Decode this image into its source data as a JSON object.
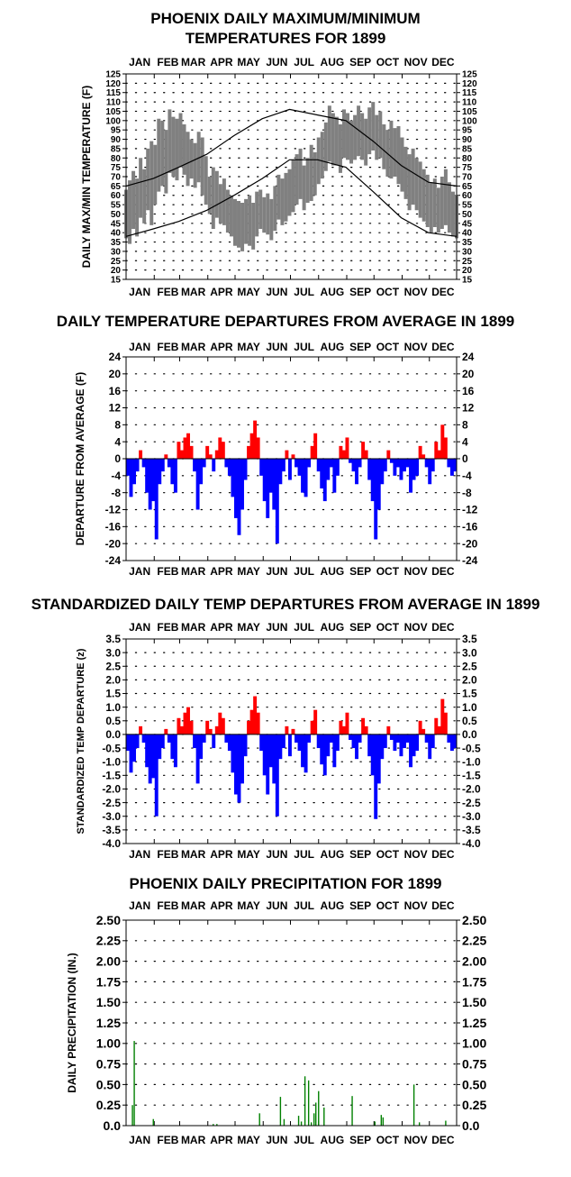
{
  "chart_data": [
    {
      "type": "line",
      "title_lines": [
        "PHOENIX DAILY MAXIMUM/MINIMUM",
        "TEMPERATURES FOR 1899"
      ],
      "ylabel": "DAILY MAX/MIN TEMPERATURE (F)",
      "months": [
        "JAN",
        "FEB",
        "MAR",
        "APR",
        "MAY",
        "JUN",
        "JUL",
        "AUG",
        "SEP",
        "OCT",
        "NOV",
        "DEC"
      ],
      "ylim": [
        15,
        125
      ],
      "ytick_labels": [
        "15",
        "20",
        "25",
        "30",
        "35",
        "40",
        "45",
        "50",
        "55",
        "60",
        "65",
        "70",
        "75",
        "80",
        "85",
        "90",
        "95",
        "100",
        "105",
        "110",
        "115",
        "120",
        "125"
      ],
      "grid": "dotted",
      "colors": {
        "daily_range": "#808080",
        "normals": "#000000"
      },
      "series": [
        {
          "label_key": "daily_max",
          "values": [
            63,
            68,
            73,
            69,
            80,
            74,
            85,
            89,
            87,
            101,
            100,
            95,
            106,
            102,
            101,
            104,
            98,
            94,
            90,
            88,
            94,
            91,
            81,
            70,
            75,
            73,
            66,
            69,
            63,
            60,
            58,
            57,
            56,
            58,
            60,
            56,
            62,
            63,
            59,
            61,
            58,
            65,
            71,
            69,
            72,
            74,
            79,
            82,
            85,
            76,
            80,
            87,
            83,
            91,
            94,
            99,
            108,
            104,
            102,
            98,
            106,
            104,
            100,
            103,
            108,
            104,
            101,
            107,
            110,
            103,
            105,
            98,
            95,
            100,
            96,
            97,
            91,
            86,
            82,
            85,
            80,
            78,
            74,
            71,
            67,
            69,
            64,
            70,
            74,
            67,
            62,
            60
          ]
        },
        {
          "label_key": "daily_min",
          "values": [
            37,
            34,
            42,
            38,
            48,
            45,
            52,
            44,
            55,
            62,
            65,
            61,
            72,
            70,
            68,
            75,
            71,
            65,
            69,
            64,
            67,
            60,
            55,
            50,
            42,
            48,
            45,
            44,
            40,
            38,
            33,
            32,
            30,
            34,
            33,
            31,
            38,
            42,
            40,
            39,
            36,
            41,
            47,
            44,
            46,
            49,
            51,
            55,
            58,
            52,
            56,
            57,
            60,
            66,
            69,
            73,
            78,
            76,
            76,
            72,
            80,
            79,
            77,
            79,
            81,
            79,
            76,
            82,
            84,
            79,
            80,
            74,
            70,
            69,
            70,
            66,
            62,
            58,
            52,
            55,
            52,
            48,
            46,
            43,
            40,
            43,
            40,
            42,
            44,
            40,
            38,
            37
          ]
        },
        {
          "label_key": "normal_max",
          "x_day": [
            1,
            31,
            59,
            90,
            120,
            151,
            181,
            212,
            243,
            273,
            304,
            334,
            365
          ],
          "values": [
            65,
            69,
            75,
            82,
            92,
            101,
            106,
            103,
            100,
            89,
            76,
            67,
            65
          ]
        },
        {
          "label_key": "normal_min",
          "x_day": [
            1,
            31,
            59,
            90,
            120,
            151,
            181,
            212,
            243,
            273,
            304,
            334,
            365
          ],
          "values": [
            38,
            42,
            46,
            52,
            60,
            69,
            79,
            79,
            75,
            62,
            48,
            40,
            38
          ]
        }
      ]
    },
    {
      "type": "bar",
      "title": "DAILY TEMPERATURE DEPARTURES FROM AVERAGE IN 1899",
      "ylabel": "DEPARTURE FROM AVERAGE (F)",
      "months": [
        "JAN",
        "FEB",
        "MAR",
        "APR",
        "MAY",
        "JUN",
        "JUL",
        "AUG",
        "SEP",
        "OCT",
        "NOV",
        "DEC"
      ],
      "ylim": [
        -24,
        24
      ],
      "ytick_labels": [
        "24",
        "20",
        "16",
        "12",
        "8",
        "4",
        "0",
        "-4",
        "-8",
        "-12",
        "-16",
        "-20",
        "-24"
      ],
      "colors": {
        "positive": "#ff0000",
        "negative": "#0000ff"
      },
      "values": [
        -4,
        -9,
        -6,
        -3,
        2,
        -2,
        -8,
        -12,
        -10,
        -19,
        -6,
        -3,
        1,
        -2,
        -6,
        -8,
        4,
        2,
        5,
        6,
        3,
        -3,
        -12,
        -6,
        -2,
        3,
        1,
        -3,
        2,
        5,
        4,
        -2,
        -4,
        -9,
        -14,
        -18,
        -12,
        -5,
        3,
        6,
        9,
        5,
        -4,
        -10,
        -14,
        -8,
        -12,
        -20,
        -6,
        -3,
        2,
        -5,
        1,
        -2,
        -4,
        -8,
        -9,
        -2,
        3,
        6,
        -3,
        -7,
        -10,
        -5,
        -2,
        -8,
        -4,
        3,
        2,
        5,
        -1,
        -3,
        -6,
        -2,
        4,
        2,
        -5,
        -10,
        -19,
        -12,
        -6,
        -3,
        2,
        -1,
        -4,
        -2,
        -5,
        -3,
        -2,
        -8,
        -5,
        -4,
        3,
        1,
        -2,
        -6,
        -3,
        4,
        2,
        8,
        5,
        -2,
        -4,
        -3
      ]
    },
    {
      "type": "bar",
      "title": "STANDARDIZED DAILY TEMP DEPARTURES FROM AVERAGE IN 1899",
      "ylabel": "STANDARDIZED TEMP DEPARTURE (z)",
      "months": [
        "JAN",
        "FEB",
        "MAR",
        "APR",
        "MAY",
        "JUN",
        "JUL",
        "AUG",
        "SEP",
        "OCT",
        "NOV",
        "DEC"
      ],
      "ylim": [
        -4,
        3.5
      ],
      "ytick_labels": [
        "3.5",
        "3.0",
        "2.5",
        "2.0",
        "1.5",
        "1.0",
        "0.5",
        "0.0",
        "-0.5",
        "-1.0",
        "-1.5",
        "-2.0",
        "-2.5",
        "-3.0",
        "-3.5",
        "-4.0"
      ],
      "colors": {
        "positive": "#ff0000",
        "negative": "#0000ff"
      },
      "values": [
        -0.6,
        -1.4,
        -1.0,
        -0.5,
        0.3,
        -0.3,
        -1.2,
        -1.8,
        -1.6,
        -3.0,
        -0.9,
        -0.5,
        0.2,
        -0.3,
        -0.9,
        -1.2,
        0.6,
        0.3,
        0.8,
        1.0,
        0.5,
        -0.5,
        -1.8,
        -0.9,
        -0.3,
        0.5,
        0.2,
        -0.5,
        0.3,
        0.8,
        0.6,
        -0.3,
        -0.6,
        -1.4,
        -2.2,
        -2.5,
        -1.8,
        -0.8,
        0.5,
        0.9,
        1.4,
        0.8,
        -0.6,
        -1.5,
        -2.2,
        -1.2,
        -1.8,
        -3.0,
        -0.9,
        -0.5,
        0.3,
        -0.8,
        0.2,
        -0.3,
        -0.6,
        -1.2,
        -1.4,
        -0.3,
        0.5,
        0.9,
        -0.5,
        -1.1,
        -1.5,
        -0.8,
        -0.3,
        -1.2,
        -0.6,
        0.5,
        0.3,
        0.8,
        -0.2,
        -0.5,
        -0.9,
        -0.3,
        0.6,
        0.3,
        -0.8,
        -1.5,
        -3.1,
        -1.8,
        -0.9,
        -0.5,
        0.3,
        -0.2,
        -0.6,
        -0.3,
        -0.8,
        -0.5,
        -0.3,
        -1.2,
        -0.8,
        -0.6,
        0.5,
        0.2,
        -0.3,
        -0.9,
        -0.5,
        0.6,
        0.3,
        1.3,
        0.8,
        -0.3,
        -0.6,
        -0.5
      ]
    },
    {
      "type": "bar",
      "title": "PHOENIX DAILY PRECIPITATION FOR 1899",
      "ylabel": "DAILY PRECIPITATION (IN.)",
      "months": [
        "JAN",
        "FEB",
        "MAR",
        "APR",
        "MAY",
        "JUN",
        "JUL",
        "AUG",
        "SEP",
        "OCT",
        "NOV",
        "DEC"
      ],
      "ylim": [
        0,
        2.5
      ],
      "ytick_labels": [
        "2.50",
        "2.25",
        "2.00",
        "1.75",
        "1.50",
        "1.25",
        "1.00",
        "0.75",
        "0.50",
        "0.25",
        "0.0"
      ],
      "colors": {
        "bars": "#008000"
      },
      "events": [
        {
          "day": 8,
          "value": 0.25
        },
        {
          "day": 10,
          "value": 1.03
        },
        {
          "day": 31,
          "value": 0.08
        },
        {
          "day": 97,
          "value": 0.02
        },
        {
          "day": 101,
          "value": 0.02
        },
        {
          "day": 148,
          "value": 0.15
        },
        {
          "day": 171,
          "value": 0.35
        },
        {
          "day": 175,
          "value": 0.08
        },
        {
          "day": 191,
          "value": 0.12
        },
        {
          "day": 194,
          "value": 0.05
        },
        {
          "day": 198,
          "value": 0.6
        },
        {
          "day": 202,
          "value": 0.55
        },
        {
          "day": 205,
          "value": 0.04
        },
        {
          "day": 208,
          "value": 0.15
        },
        {
          "day": 210,
          "value": 0.28
        },
        {
          "day": 213,
          "value": 0.42
        },
        {
          "day": 219,
          "value": 0.22
        },
        {
          "day": 250,
          "value": 0.36
        },
        {
          "day": 275,
          "value": 0.05
        },
        {
          "day": 282,
          "value": 0.13
        },
        {
          "day": 284,
          "value": 0.1
        },
        {
          "day": 318,
          "value": 0.5
        },
        {
          "day": 324,
          "value": 0.04
        },
        {
          "day": 353,
          "value": 0.06
        }
      ]
    }
  ]
}
